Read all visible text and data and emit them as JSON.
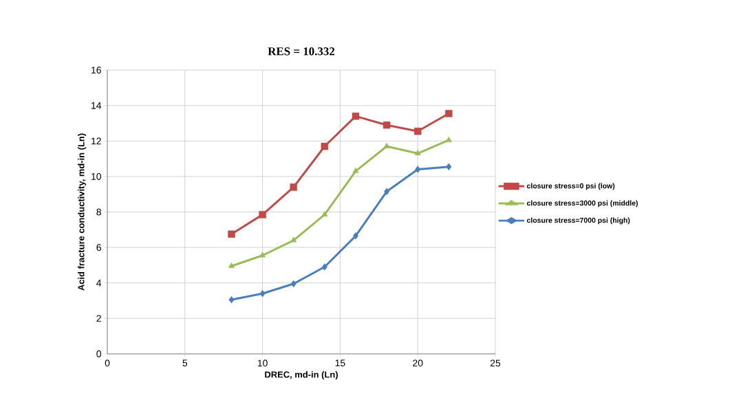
{
  "chart_data": {
    "type": "line",
    "title": "RES = 10.332",
    "xlabel": "DREC, md-in (Ln)",
    "ylabel": "Acid fracture conductivity, md-in (Ln)",
    "x": [
      8,
      10,
      12,
      14,
      16,
      18,
      20,
      22
    ],
    "series": [
      {
        "name": "closure stress=0 psi (low)",
        "color": "#be4b48",
        "marker": "square",
        "values": [
          6.75,
          7.85,
          9.4,
          11.7,
          13.4,
          12.9,
          12.55,
          13.55
        ]
      },
      {
        "name": "closure stress=3000 psi (middle)",
        "color": "#9bbb59",
        "marker": "triangle",
        "values": [
          4.95,
          5.55,
          6.4,
          7.85,
          10.3,
          11.7,
          11.3,
          12.05
        ]
      },
      {
        "name": "closure stress=7000 psi (high)",
        "color": "#4a7ebb",
        "marker": "diamond",
        "values": [
          3.05,
          3.4,
          3.95,
          4.9,
          6.65,
          9.15,
          10.4,
          10.55
        ]
      }
    ],
    "xlim": [
      0,
      25
    ],
    "xticks": [
      0,
      5,
      10,
      15,
      20,
      25
    ],
    "ylim": [
      0,
      16
    ],
    "yticks": [
      0,
      2,
      4,
      6,
      8,
      10,
      12,
      14,
      16
    ],
    "grid": true,
    "legend": "right",
    "line_style": "solid"
  }
}
